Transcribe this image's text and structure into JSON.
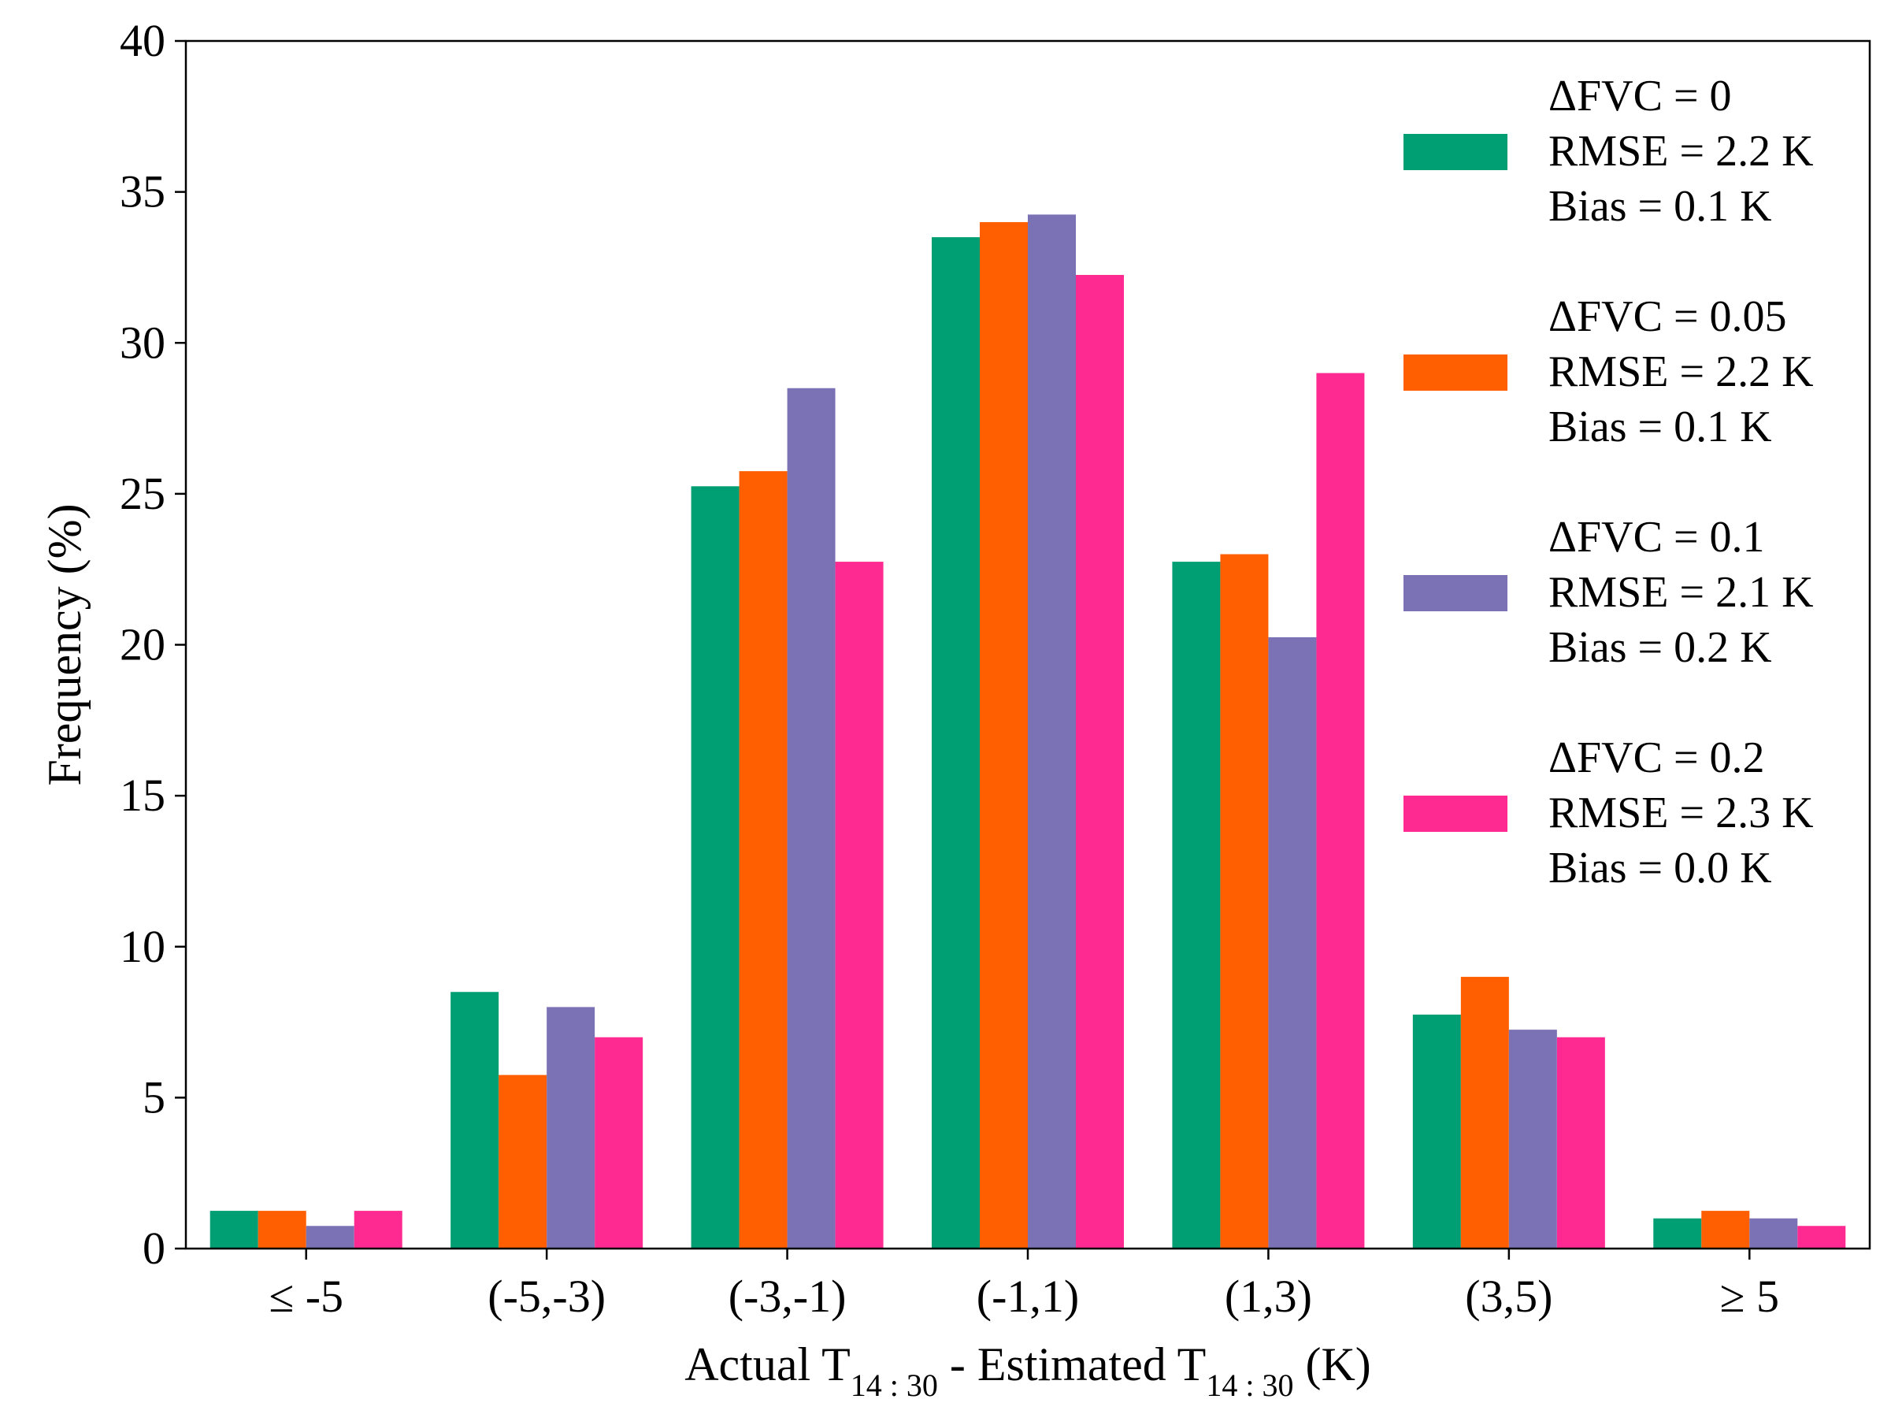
{
  "chart_data": {
    "type": "bar",
    "categories": [
      "≤ -5",
      "(-5,-3)",
      "(-3,-1)",
      "(-1,1)",
      "(1,3)",
      "(3,5)",
      "≥ 5"
    ],
    "series": [
      {
        "name": "ΔFVC = 0",
        "rmse_label": "RMSE = 2.2 K",
        "bias_label": "Bias = 0.1 K",
        "color": "#009E73",
        "values": [
          1.25,
          8.5,
          25.25,
          33.5,
          22.75,
          7.75,
          1.0
        ]
      },
      {
        "name": "ΔFVC = 0.05",
        "rmse_label": "RMSE = 2.2 K",
        "bias_label": "Bias = 0.1 K",
        "color": "#FF5F00",
        "values": [
          1.25,
          5.75,
          25.75,
          34.0,
          23.0,
          9.0,
          1.25
        ]
      },
      {
        "name": "ΔFVC = 0.1",
        "rmse_label": "RMSE = 2.1 K",
        "bias_label": "Bias = 0.2 K",
        "color": "#7B72B6",
        "values": [
          0.75,
          8.0,
          28.5,
          34.25,
          20.25,
          7.25,
          1.0
        ]
      },
      {
        "name": "ΔFVC = 0.2",
        "rmse_label": "RMSE = 2.3 K",
        "bias_label": "Bias = 0.0 K",
        "color": "#FF2A91",
        "values": [
          1.25,
          7.0,
          22.75,
          32.25,
          29.0,
          7.0,
          0.75
        ]
      }
    ],
    "ylabel": "Frequency (%)",
    "xlabel": {
      "main": "Actual T",
      "sub": "14 : 30",
      "mid": " - Estimated T",
      "sub2": "14 : 30",
      "end": " (K)"
    },
    "ylim": [
      0,
      40
    ],
    "yticks": [
      0,
      5,
      10,
      15,
      20,
      25,
      30,
      35,
      40
    ],
    "legend_position": "upper-right",
    "grid": false
  }
}
